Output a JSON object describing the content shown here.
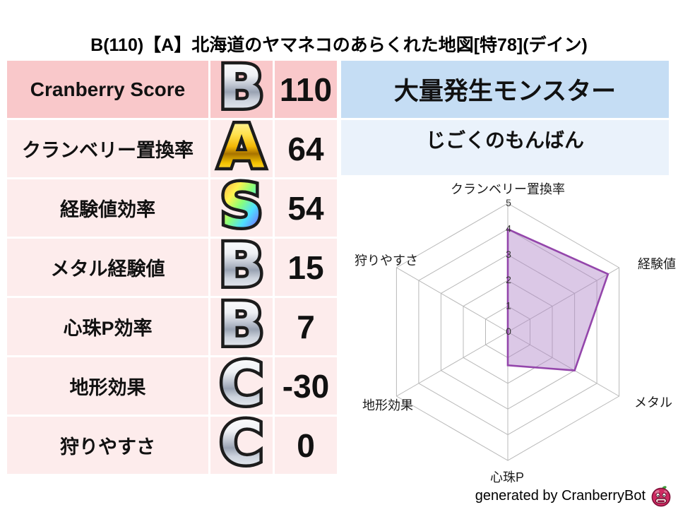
{
  "title": "B(110)【A】北海道のヤマネコのあらくれた地図[特78](デイン)",
  "stats_table": {
    "rows": [
      {
        "label": "Cranberry Score",
        "grade": "B",
        "grade_style": "silver",
        "value": "110"
      },
      {
        "label": "クランベリー置換率",
        "grade": "A",
        "grade_style": "gold",
        "value": "64"
      },
      {
        "label": "経験値効率",
        "grade": "S",
        "grade_style": "rainbow",
        "value": "54"
      },
      {
        "label": "メタル経験値",
        "grade": "B",
        "grade_style": "silver",
        "value": "15"
      },
      {
        "label": "心珠P効率",
        "grade": "B",
        "grade_style": "silver",
        "value": "7"
      },
      {
        "label": "地形効果",
        "grade": "C",
        "grade_style": "silver",
        "value": "-30"
      },
      {
        "label": "狩りやすさ",
        "grade": "C",
        "grade_style": "silver",
        "value": "0"
      }
    ]
  },
  "monster_panel": {
    "header": "大量発生モンスター",
    "monster_name": "じごくのもんばん"
  },
  "chart_data": {
    "type": "radar",
    "categories": [
      "クランベリー置換率",
      "経験値",
      "メタル",
      "心珠P",
      "地形効果",
      "狩りやすさ"
    ],
    "values": [
      4,
      4.5,
      3,
      1.3,
      0,
      0
    ],
    "ticks": [
      0,
      1,
      2,
      3,
      4,
      5
    ],
    "rmax": 5,
    "legend": "none",
    "grid": true,
    "fill_color": "#b084c8",
    "fill_opacity": 0.45,
    "stroke_color": "#9446ab",
    "grid_color": "#b8b8b8",
    "tick_color": "#333333"
  },
  "footer": {
    "credit": "generated by CranberryBot",
    "icon": "cranberry-icon"
  },
  "colors": {
    "row_dark_pink": "#f9c8ca",
    "row_light_pink": "#fdecec",
    "header_blue": "#c5ddf4",
    "light_blue": "#eaf2fb"
  }
}
